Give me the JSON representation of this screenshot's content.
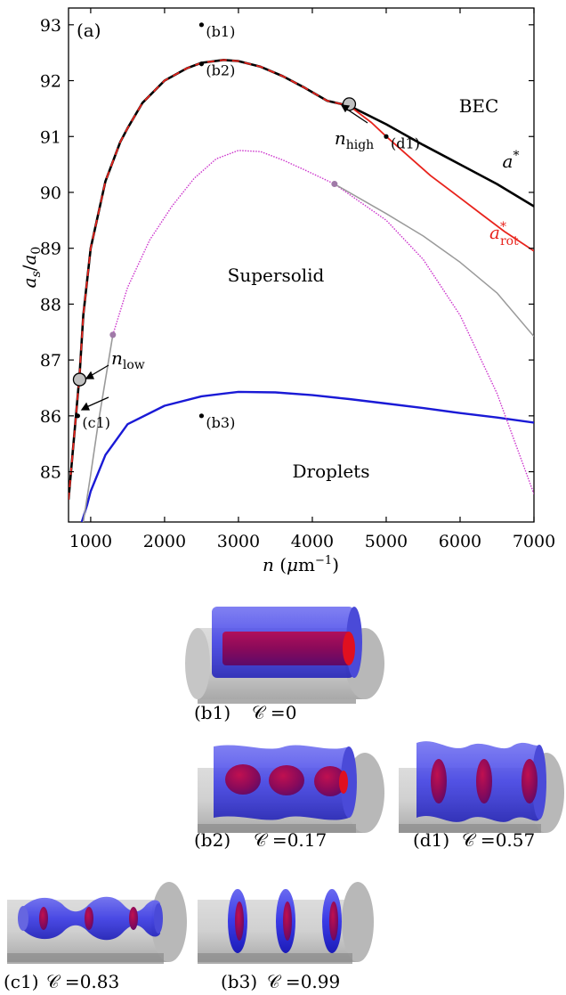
{
  "chart_data": {
    "type": "line",
    "panel_label": "(a)",
    "xlabel": "n (μm⁻¹)",
    "ylabel": "a_s/a_0",
    "xlim": [
      700,
      7000
    ],
    "ylim": [
      84.1,
      93.3
    ],
    "xticks": [
      1000,
      2000,
      3000,
      4000,
      5000,
      6000,
      7000
    ],
    "yticks": [
      85,
      86,
      87,
      88,
      89,
      90,
      91,
      92,
      93
    ],
    "grid": false,
    "colors": {
      "a_star": "#000000",
      "a_rot": "#e8231c",
      "droplet": "#1a1ad6",
      "supersolid_gray": "#9a9a9a",
      "supersolid_magenta": "#cc33cc"
    },
    "series": [
      {
        "name": "a*",
        "style": "solid",
        "x": [
          700,
          850,
          900,
          1000,
          1200,
          1400,
          1500,
          1700,
          2000,
          2300,
          2500,
          2800,
          3000,
          3300,
          3600,
          3900,
          4200,
          4500,
          5000,
          5500,
          6000,
          6500,
          7000
        ],
        "y": [
          84.5,
          86.75,
          87.8,
          89.0,
          90.2,
          90.9,
          91.15,
          91.6,
          92.0,
          92.22,
          92.32,
          92.37,
          92.35,
          92.25,
          92.08,
          91.87,
          91.64,
          91.55,
          91.22,
          90.85,
          90.5,
          90.15,
          89.75
        ]
      },
      {
        "name": "a*_rot",
        "style": "solid",
        "x": [
          4500,
          4800,
          5000,
          5300,
          5600,
          6000,
          6300,
          6600,
          7000
        ],
        "y": [
          91.55,
          91.25,
          91.0,
          90.65,
          90.3,
          89.9,
          89.6,
          89.3,
          88.95
        ]
      },
      {
        "name": "droplet",
        "style": "solid",
        "x": [
          880,
          950,
          1000,
          1200,
          1500,
          2000,
          2500,
          3000,
          3500,
          4000,
          4500,
          5000,
          5500,
          6000,
          6500,
          7000
        ],
        "y": [
          84.1,
          84.4,
          84.65,
          85.3,
          85.85,
          86.18,
          86.35,
          86.43,
          86.42,
          86.37,
          86.3,
          86.22,
          86.14,
          86.05,
          85.97,
          85.88
        ]
      },
      {
        "name": "supersolid-left",
        "style": "solid",
        "x": [
          900,
          1000,
          1100,
          1200,
          1300
        ],
        "y": [
          84.1,
          84.95,
          85.85,
          86.65,
          87.45
        ]
      },
      {
        "name": "supersolid-dome",
        "style": "dotted",
        "x": [
          1300,
          1500,
          1800,
          2100,
          2400,
          2700,
          3000,
          3300,
          3600,
          3900,
          4300,
          5000,
          5500,
          6000,
          6500,
          7000
        ],
        "y": [
          87.45,
          88.3,
          89.15,
          89.75,
          90.25,
          90.6,
          90.75,
          90.73,
          90.58,
          90.4,
          90.15,
          89.5,
          88.8,
          87.8,
          86.4,
          84.6
        ]
      },
      {
        "name": "supersolid-right",
        "style": "solid",
        "x": [
          4300,
          5000,
          5500,
          6000,
          6500,
          7000
        ],
        "y": [
          90.15,
          89.62,
          89.22,
          88.75,
          88.2,
          87.42
        ]
      }
    ],
    "markers": [
      {
        "x": 850,
        "y": 86.65,
        "kind": "circle"
      },
      {
        "x": 4500,
        "y": 91.58,
        "kind": "circle"
      },
      {
        "x": 1300,
        "y": 87.45,
        "kind": "small"
      },
      {
        "x": 4300,
        "y": 90.15,
        "kind": "small"
      }
    ],
    "points": [
      {
        "x": 2500,
        "y": 93.0,
        "label": "(b1)"
      },
      {
        "x": 2500,
        "y": 92.3,
        "label": "(b2)"
      },
      {
        "x": 2500,
        "y": 86.0,
        "label": "(b3)"
      },
      {
        "x": 825,
        "y": 86.0,
        "label": "(c1)"
      },
      {
        "x": 5000,
        "y": 91.0,
        "label": "(d1)"
      }
    ],
    "region_labels": [
      "BEC",
      "Supersolid",
      "Droplets"
    ],
    "annotations": {
      "a_star": "a*",
      "a_rot": "a*rot",
      "n_high": "nhigh",
      "n_low": "nlow"
    }
  },
  "insets": [
    {
      "id": "b1",
      "caption": "(b1)",
      "metric": "𝒞 =0",
      "value": 0,
      "blobs": 1
    },
    {
      "id": "b2",
      "caption": "(b2)",
      "metric": "𝒞 =0.17",
      "value": 0.17,
      "blobs": 3
    },
    {
      "id": "d1",
      "caption": "(d1)",
      "metric": "𝒞 =0.57",
      "value": 0.57,
      "blobs": 3
    },
    {
      "id": "c1",
      "caption": "(c1)",
      "metric": "𝒞 =0.83",
      "value": 0.83,
      "blobs": 3
    },
    {
      "id": "b3",
      "caption": "(b3)",
      "metric": "𝒞 =0.99",
      "value": 0.99,
      "blobs": 3
    }
  ]
}
